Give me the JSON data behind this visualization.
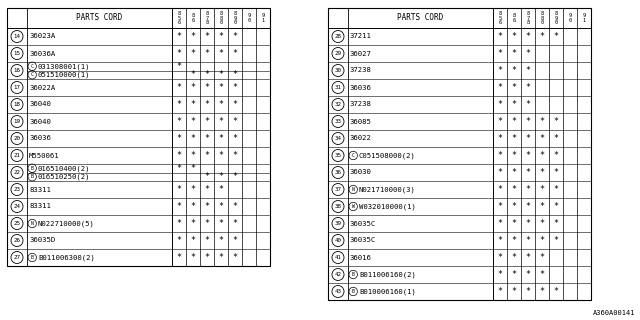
{
  "left_rows": [
    {
      "num": "14",
      "part": "36023A",
      "prefix": "",
      "stars": [
        1,
        1,
        1,
        1,
        1,
        0,
        0
      ]
    },
    {
      "num": "15",
      "part": "36036A",
      "prefix": "",
      "stars": [
        1,
        1,
        1,
        1,
        1,
        0,
        0
      ]
    },
    {
      "num": "16",
      "part": "031308001(1)",
      "prefix": "C",
      "stars": [
        1,
        0,
        0,
        0,
        0,
        0,
        0
      ],
      "sub_part": "051510000(1)",
      "sub_prefix": "C",
      "sub_stars": [
        0,
        1,
        1,
        1,
        1,
        0,
        0
      ]
    },
    {
      "num": "17",
      "part": "36022A",
      "prefix": "",
      "stars": [
        1,
        1,
        1,
        1,
        1,
        0,
        0
      ]
    },
    {
      "num": "18",
      "part": "36040",
      "prefix": "",
      "stars": [
        1,
        1,
        1,
        1,
        1,
        0,
        0
      ]
    },
    {
      "num": "19",
      "part": "36040",
      "prefix": "",
      "stars": [
        1,
        1,
        1,
        1,
        1,
        0,
        0
      ]
    },
    {
      "num": "20",
      "part": "36036",
      "prefix": "",
      "stars": [
        1,
        1,
        1,
        1,
        1,
        0,
        0
      ]
    },
    {
      "num": "21",
      "part": "M550061",
      "prefix": "",
      "stars": [
        1,
        1,
        1,
        1,
        1,
        0,
        0
      ]
    },
    {
      "num": "22",
      "part": "016510400(2)",
      "prefix": "B",
      "stars": [
        1,
        1,
        0,
        0,
        0,
        0,
        0
      ],
      "sub_part": "016510250(2)",
      "sub_prefix": "B",
      "sub_stars": [
        0,
        0,
        1,
        1,
        1,
        0,
        0
      ]
    },
    {
      "num": "23",
      "part": "83311",
      "prefix": "",
      "stars": [
        1,
        1,
        1,
        1,
        0,
        0,
        0
      ]
    },
    {
      "num": "24",
      "part": "83311",
      "prefix": "",
      "stars": [
        1,
        1,
        1,
        1,
        1,
        0,
        0
      ]
    },
    {
      "num": "25",
      "part": "N022710000(5)",
      "prefix": "N",
      "stars": [
        1,
        1,
        1,
        1,
        1,
        0,
        0
      ]
    },
    {
      "num": "26",
      "part": "36035D",
      "prefix": "",
      "stars": [
        1,
        1,
        1,
        1,
        1,
        0,
        0
      ]
    },
    {
      "num": "27",
      "part": "B011006300(2)",
      "prefix": "B",
      "stars": [
        1,
        1,
        1,
        1,
        1,
        0,
        0
      ]
    }
  ],
  "right_rows": [
    {
      "num": "28",
      "part": "37211",
      "prefix": "",
      "stars": [
        1,
        1,
        1,
        1,
        1,
        0,
        0
      ]
    },
    {
      "num": "29",
      "part": "36027",
      "prefix": "",
      "stars": [
        1,
        1,
        1,
        0,
        0,
        0,
        0
      ]
    },
    {
      "num": "30",
      "part": "37238",
      "prefix": "",
      "stars": [
        1,
        1,
        1,
        0,
        0,
        0,
        0
      ]
    },
    {
      "num": "31",
      "part": "36036",
      "prefix": "",
      "stars": [
        1,
        1,
        1,
        0,
        0,
        0,
        0
      ]
    },
    {
      "num": "32",
      "part": "37238",
      "prefix": "",
      "stars": [
        1,
        1,
        1,
        0,
        0,
        0,
        0
      ]
    },
    {
      "num": "33",
      "part": "36085",
      "prefix": "",
      "stars": [
        1,
        1,
        1,
        1,
        1,
        0,
        0
      ]
    },
    {
      "num": "34",
      "part": "36022",
      "prefix": "",
      "stars": [
        1,
        1,
        1,
        1,
        1,
        0,
        0
      ]
    },
    {
      "num": "35",
      "part": "C051508000(2)",
      "prefix": "C",
      "stars": [
        1,
        1,
        1,
        1,
        1,
        0,
        0
      ]
    },
    {
      "num": "36",
      "part": "36030",
      "prefix": "",
      "stars": [
        1,
        1,
        1,
        1,
        1,
        0,
        0
      ]
    },
    {
      "num": "37",
      "part": "N021710000(3)",
      "prefix": "N",
      "stars": [
        1,
        1,
        1,
        1,
        1,
        0,
        0
      ]
    },
    {
      "num": "38",
      "part": "W032010000(1)",
      "prefix": "W",
      "stars": [
        1,
        1,
        1,
        1,
        1,
        0,
        0
      ]
    },
    {
      "num": "39",
      "part": "36035C",
      "prefix": "",
      "stars": [
        1,
        1,
        1,
        1,
        1,
        0,
        0
      ]
    },
    {
      "num": "40",
      "part": "36035C",
      "prefix": "",
      "stars": [
        1,
        1,
        1,
        1,
        1,
        0,
        0
      ]
    },
    {
      "num": "41",
      "part": "36016",
      "prefix": "",
      "stars": [
        1,
        1,
        1,
        1,
        0,
        0,
        0
      ]
    },
    {
      "num": "42",
      "part": "B011006160(2)",
      "prefix": "B",
      "stars": [
        1,
        1,
        1,
        1,
        0,
        0,
        0
      ]
    },
    {
      "num": "43",
      "part": "B010006160(1)",
      "prefix": "B",
      "stars": [
        1,
        1,
        1,
        1,
        1,
        0,
        0
      ]
    }
  ],
  "year_labels": [
    "8\n5\n6",
    "8\n6",
    "8\n7\n8",
    "8\n8\n0",
    "8\n9\n0",
    "9\n0",
    "9\n1"
  ],
  "bg_color": "#ffffff",
  "line_color": "#000000",
  "text_color": "#000000",
  "watermark": "A360A00141"
}
